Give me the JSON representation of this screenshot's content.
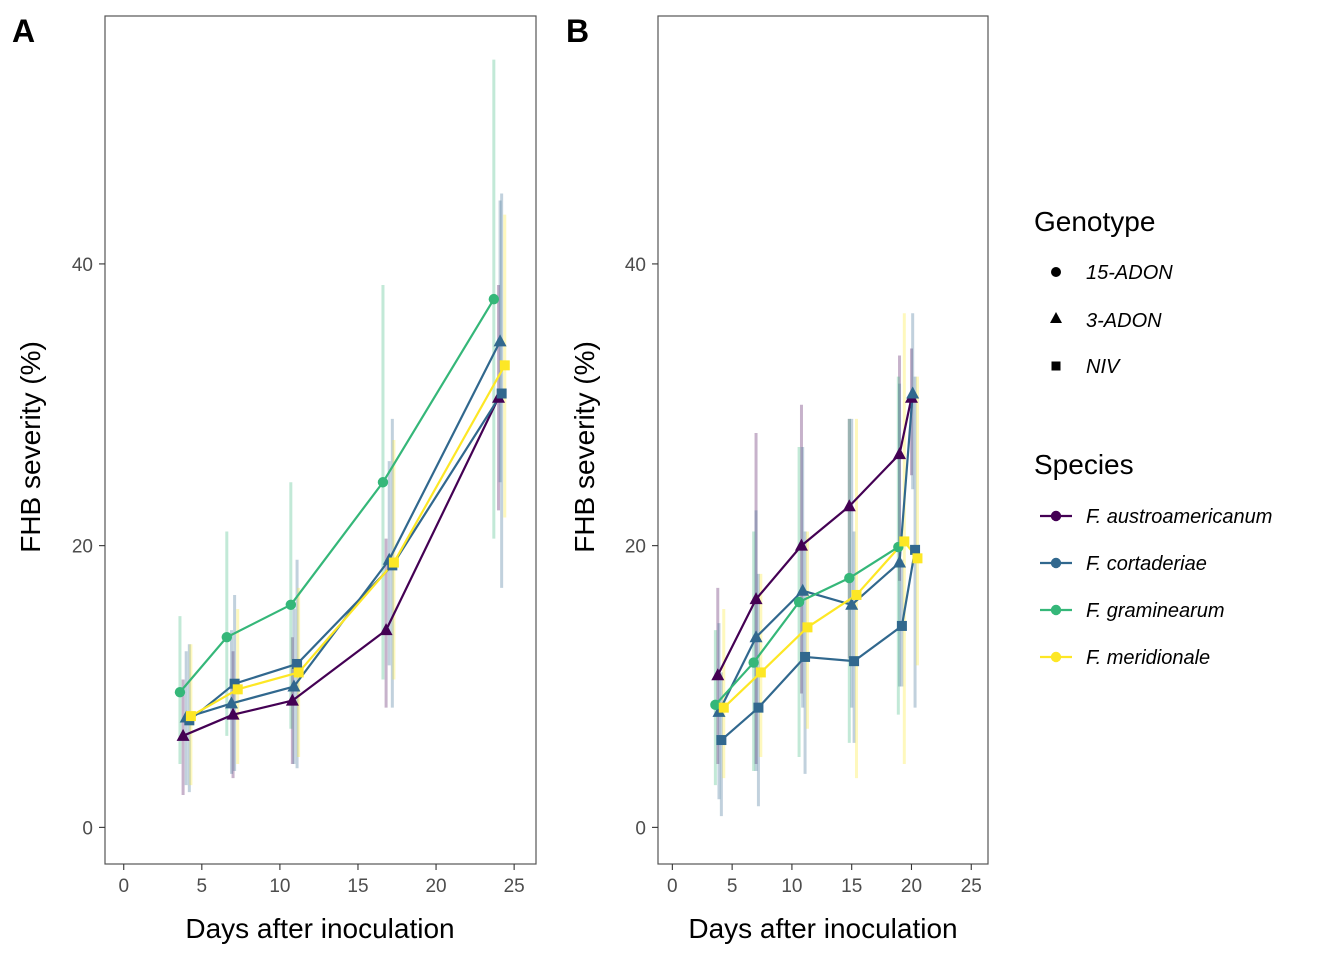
{
  "chart_data": [
    {
      "panel": "A",
      "type": "line",
      "xlabel": "Days after inoculation",
      "ylabel": "FHB severity (%)",
      "xlim": [
        -1.2,
        26.4
      ],
      "ylim": [
        -2.6,
        57.6
      ],
      "xticks": [
        0,
        5,
        10,
        15,
        20,
        25
      ],
      "yticks": [
        0,
        20,
        40
      ],
      "grid": false,
      "series": [
        {
          "name": "F. austroamericanum",
          "genotype": "3-ADON",
          "x": [
            3.8,
            7.0,
            10.8,
            16.8,
            24.0
          ],
          "y": [
            6.5,
            8.0,
            9.0,
            14.0,
            30.5
          ],
          "lower": [
            2.3,
            3.5,
            4.5,
            8.5,
            22.5
          ],
          "upper": [
            10.5,
            12.5,
            13.5,
            20.5,
            38.5
          ]
        },
        {
          "name": "F. cortaderiae",
          "genotype": "3-ADON",
          "x": [
            4.0,
            6.9,
            10.9,
            17.0,
            24.1
          ],
          "y": [
            7.8,
            8.8,
            10.0,
            19.0,
            34.5
          ],
          "lower": [
            3.0,
            3.8,
            4.5,
            11.5,
            24.5
          ],
          "upper": [
            12.5,
            14.0,
            15.5,
            26.0,
            44.5
          ]
        },
        {
          "name": "F. cortaderiae",
          "genotype": "NIV",
          "x": [
            4.2,
            7.1,
            11.1,
            17.2,
            24.2
          ],
          "y": [
            7.6,
            10.2,
            11.6,
            18.6,
            30.8
          ],
          "lower": [
            2.5,
            4.0,
            4.2,
            8.5,
            17.0
          ],
          "upper": [
            13.0,
            16.5,
            19.0,
            29.0,
            45.0
          ]
        },
        {
          "name": "F. graminearum",
          "genotype": "15-ADON",
          "x": [
            3.6,
            6.6,
            10.7,
            16.6,
            23.7
          ],
          "y": [
            9.6,
            13.5,
            15.8,
            24.5,
            37.5
          ],
          "lower": [
            4.5,
            6.5,
            7.0,
            10.5,
            20.5
          ],
          "upper": [
            15.0,
            21.0,
            24.5,
            38.5,
            54.5
          ]
        },
        {
          "name": "F. meridionale",
          "genotype": "NIV",
          "x": [
            4.3,
            7.3,
            11.2,
            17.3,
            24.4
          ],
          "y": [
            7.9,
            9.8,
            11.0,
            18.8,
            32.8
          ],
          "lower": [
            3.0,
            4.5,
            5.0,
            10.5,
            22.0
          ],
          "upper": [
            13.0,
            15.5,
            17.0,
            27.5,
            43.5
          ]
        }
      ]
    },
    {
      "panel": "B",
      "type": "line",
      "xlabel": "Days after inoculation",
      "ylabel": "FHB severity (%)",
      "xlim": [
        -1.2,
        26.4
      ],
      "ylim": [
        -2.6,
        57.6
      ],
      "xticks": [
        0,
        5,
        10,
        15,
        20,
        25
      ],
      "yticks": [
        0,
        20,
        40
      ],
      "grid": false,
      "series": [
        {
          "name": "F. austroamericanum",
          "genotype": "3-ADON",
          "x": [
            3.8,
            7.0,
            10.8,
            14.8,
            19.0,
            20.0
          ],
          "y": [
            10.8,
            16.2,
            20.0,
            22.8,
            26.5,
            30.5
          ],
          "lower": [
            4.5,
            4.5,
            9.5,
            12.0,
            17.5,
            25.0
          ],
          "upper": [
            17.0,
            28.0,
            30.0,
            29.0,
            33.5,
            34.0
          ]
        },
        {
          "name": "F. cortaderiae",
          "genotype": "3-ADON",
          "x": [
            3.9,
            7.0,
            10.9,
            15.0,
            19.0,
            20.1
          ],
          "y": [
            8.2,
            13.5,
            16.8,
            15.8,
            18.8,
            30.8
          ],
          "lower": [
            2.0,
            4.0,
            8.5,
            8.5,
            10.0,
            24.0
          ],
          "upper": [
            14.5,
            22.5,
            27.0,
            29.0,
            31.5,
            36.5
          ]
        },
        {
          "name": "F. cortaderiae",
          "genotype": "NIV",
          "x": [
            4.1,
            7.2,
            11.1,
            15.2,
            19.2,
            20.3
          ],
          "y": [
            6.2,
            8.5,
            12.1,
            11.8,
            14.3,
            19.7
          ],
          "lower": [
            0.8,
            1.5,
            3.8,
            6.0,
            10.0,
            8.5
          ],
          "upper": [
            11.0,
            18.0,
            21.0,
            21.0,
            19.0,
            32.0
          ]
        },
        {
          "name": "F. graminearum",
          "genotype": "15-ADON",
          "x": [
            3.6,
            6.8,
            10.6,
            14.8,
            18.9
          ],
          "y": [
            8.7,
            11.7,
            16.0,
            17.7,
            19.9
          ],
          "lower": [
            3.0,
            4.0,
            5.0,
            6.0,
            8.0
          ],
          "upper": [
            14.0,
            21.0,
            27.0,
            29.0,
            32.0
          ]
        },
        {
          "name": "F. meridionale",
          "genotype": "NIV",
          "x": [
            4.3,
            7.4,
            11.3,
            15.4,
            19.4,
            20.5
          ],
          "y": [
            8.5,
            11.0,
            14.2,
            16.5,
            20.3,
            19.1
          ],
          "lower": [
            3.5,
            5.0,
            7.0,
            3.5,
            4.5,
            11.5
          ],
          "upper": [
            15.5,
            18.0,
            21.0,
            29.0,
            36.5,
            32.0
          ]
        }
      ]
    }
  ],
  "panels": {
    "a": {
      "tag": "A",
      "xlabel": "Days after inoculation",
      "ylabel": "FHB severity (%)"
    },
    "b": {
      "tag": "B",
      "xlabel": "Days after inoculation",
      "ylabel": "FHB severity (%)"
    }
  },
  "legend": {
    "placement": "right",
    "genotype": {
      "title": "Genotype",
      "items": [
        {
          "label": "15-ADON",
          "shape": "circle"
        },
        {
          "label": "3-ADON",
          "shape": "triangle"
        },
        {
          "label": "NIV",
          "shape": "square"
        }
      ]
    },
    "species": {
      "title": "Species",
      "items": [
        {
          "label": "F. austroamericanum",
          "color": "#440154"
        },
        {
          "label": "F. cortaderiae",
          "color": "#31688E"
        },
        {
          "label": "F. graminearum",
          "color": "#35B779"
        },
        {
          "label": "F. meridionale",
          "color": "#FDE725"
        }
      ]
    }
  },
  "colors": {
    "F. austroamericanum": "#440154",
    "F. cortaderiae": "#31688E",
    "F. graminearum": "#35B779",
    "F. meridionale": "#FDE725"
  }
}
